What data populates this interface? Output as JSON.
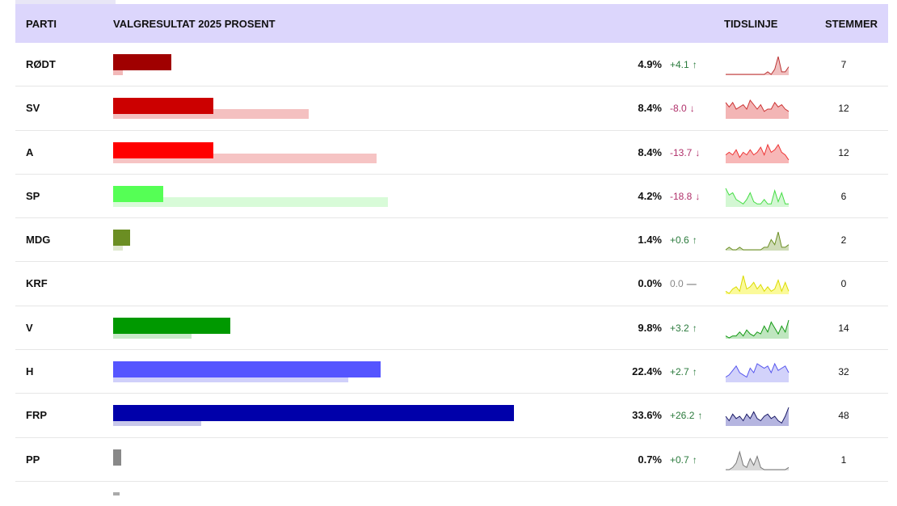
{
  "header": {
    "party": "PARTI",
    "result": "VALGRESULTAT 2025 PROSENT",
    "timeline": "TIDSLINJE",
    "votes": "STEMMER"
  },
  "max_pct": 50,
  "rows": [
    {
      "party": "RØDT",
      "pct_value": 4.9,
      "pct": "4.9%",
      "prev_value": 0.8,
      "change": "+4.1",
      "dir": "up",
      "votes": "7",
      "color": "#a00000",
      "prev_color": "#f2b8b8",
      "spark_color": "#b33",
      "spark_fill": "#f0c0c0",
      "spark": [
        0,
        0,
        0,
        0,
        0,
        0,
        0,
        0,
        0,
        0,
        0,
        0,
        1,
        0,
        2,
        7,
        1,
        1,
        3
      ]
    },
    {
      "party": "SV",
      "pct_value": 8.4,
      "pct": "8.4%",
      "prev_value": 16.4,
      "change": "-8.0",
      "dir": "down",
      "votes": "12",
      "color": "#cc0000",
      "prev_color": "#f4c0c0",
      "spark_color": "#c33",
      "spark_fill": "#f3b5b5",
      "spark": [
        7,
        5,
        7,
        4,
        5,
        6,
        4,
        8,
        6,
        4,
        6,
        3,
        4,
        4,
        7,
        5,
        6,
        4,
        3
      ]
    },
    {
      "party": "A",
      "pct_value": 8.4,
      "pct": "8.4%",
      "prev_value": 22.1,
      "change": "-13.7",
      "dir": "down",
      "votes": "12",
      "color": "#ff0000",
      "prev_color": "#f6c4c4",
      "spark_color": "#e33",
      "spark_fill": "#f7b7b7",
      "spark": [
        3,
        4,
        3,
        5,
        2,
        4,
        3,
        5,
        3,
        4,
        6,
        3,
        7,
        4,
        5,
        7,
        4,
        3,
        1
      ]
    },
    {
      "party": "SP",
      "pct_value": 4.2,
      "pct": "4.2%",
      "prev_value": 23.0,
      "change": "-18.8",
      "dir": "down",
      "votes": "6",
      "color": "#55ff55",
      "prev_color": "#d8fbd8",
      "spark_color": "#4d4",
      "spark_fill": "#d3f7d3",
      "spark": [
        8,
        5,
        6,
        3,
        2,
        1,
        3,
        6,
        2,
        1,
        1,
        3,
        1,
        1,
        7,
        2,
        6,
        1,
        1
      ]
    },
    {
      "party": "MDG",
      "pct_value": 1.4,
      "pct": "1.4%",
      "prev_value": 0.8,
      "change": "+0.6",
      "dir": "up",
      "votes": "2",
      "color": "#6b8e23",
      "prev_color": "#dfe8cf",
      "spark_color": "#6b8e23",
      "spark_fill": "#cfdcb8",
      "spark": [
        0,
        1,
        0,
        0,
        1,
        0,
        0,
        0,
        0,
        0,
        0,
        1,
        1,
        4,
        2,
        7,
        1,
        1,
        2
      ]
    },
    {
      "party": "KRF",
      "pct_value": 0,
      "pct": "0.0%",
      "prev_value": 0,
      "change": "0.0",
      "dir": "neutral",
      "votes": "0",
      "color": "#e0e000",
      "prev_color": "#fafac0",
      "spark_color": "#dada00",
      "spark_fill": "#fbfa9a",
      "spark": [
        1,
        0,
        2,
        3,
        1,
        8,
        2,
        3,
        5,
        2,
        4,
        1,
        3,
        1,
        2,
        6,
        1,
        5,
        1
      ]
    },
    {
      "party": "V",
      "pct_value": 9.8,
      "pct": "9.8%",
      "prev_value": 6.6,
      "change": "+3.2",
      "dir": "up",
      "votes": "14",
      "color": "#009900",
      "prev_color": "#c8eac8",
      "spark_color": "#129912",
      "spark_fill": "#bfe6bf",
      "spark": [
        1,
        0,
        1,
        1,
        3,
        1,
        4,
        2,
        1,
        3,
        2,
        6,
        3,
        8,
        5,
        2,
        6,
        3,
        9
      ]
    },
    {
      "party": "H",
      "pct_value": 22.4,
      "pct": "22.4%",
      "prev_value": 19.7,
      "change": "+2.7",
      "dir": "up",
      "votes": "32",
      "color": "#5555ff",
      "prev_color": "#d0d0fa",
      "spark_color": "#5555ee",
      "spark_fill": "#d2d2fa",
      "spark": [
        2,
        3,
        5,
        7,
        4,
        3,
        2,
        6,
        4,
        8,
        7,
        6,
        7,
        4,
        8,
        5,
        6,
        7,
        4
      ]
    },
    {
      "party": "FRP",
      "pct_value": 33.6,
      "pct": "33.6%",
      "prev_value": 7.4,
      "change": "+26.2",
      "dir": "up",
      "votes": "48",
      "color": "#0000aa",
      "prev_color": "#c7c7ea",
      "spark_color": "#1a1a66",
      "spark_fill": "#b5b5e0",
      "spark": [
        4,
        2,
        5,
        3,
        4,
        2,
        5,
        3,
        6,
        3,
        2,
        4,
        5,
        3,
        4,
        2,
        1,
        4,
        8
      ]
    },
    {
      "party": "PP",
      "pct_value": 0.7,
      "pct": "0.7%",
      "prev_value": 0,
      "change": "+0.7",
      "dir": "up",
      "votes": "1",
      "color": "#888888",
      "prev_color": "#e2e2e2",
      "spark_color": "#777",
      "spark_fill": "#d9d9d9",
      "spark": [
        0,
        0,
        1,
        3,
        8,
        2,
        1,
        5,
        2,
        6,
        1,
        0,
        0,
        0,
        0,
        0,
        0,
        0,
        1
      ]
    }
  ]
}
